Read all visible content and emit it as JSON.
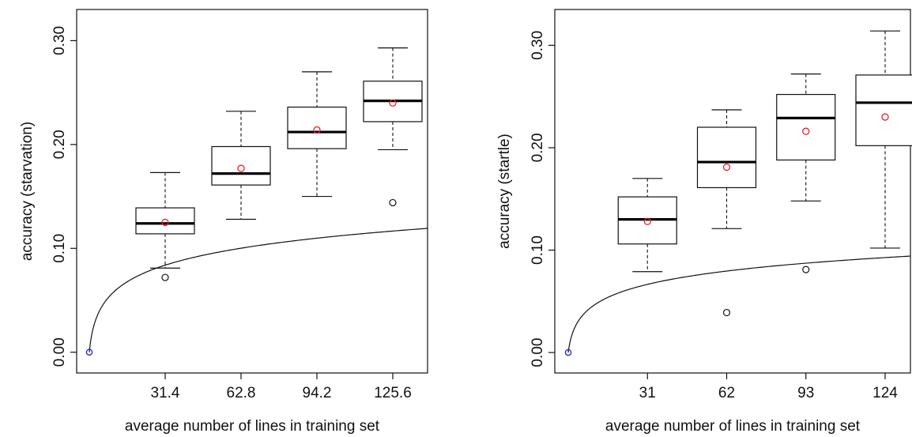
{
  "chart_data": [
    {
      "type": "boxplot",
      "xlabel": "average number of lines in training set",
      "ylabel": "accuracy (starvation)",
      "ylim": [
        -0.02,
        0.33
      ],
      "xlim": [
        -0.5,
        45
      ],
      "yticks": [
        "0.00",
        "0.10",
        "0.20",
        "0.30"
      ],
      "categories": [
        "31.4",
        "62.8",
        "94.2",
        "125.6"
      ],
      "boxes": [
        {
          "x": 31.4,
          "whisker_low": 0.081,
          "q1": 0.114,
          "median": 0.124,
          "q3": 0.139,
          "whisker_high": 0.173,
          "mean": 0.125,
          "outliers": [
            0.072
          ]
        },
        {
          "x": 62.8,
          "whisker_low": 0.128,
          "q1": 0.161,
          "median": 0.172,
          "q3": 0.198,
          "whisker_high": 0.232,
          "mean": 0.177,
          "outliers": []
        },
        {
          "x": 94.2,
          "whisker_low": 0.15,
          "q1": 0.196,
          "median": 0.212,
          "q3": 0.236,
          "whisker_high": 0.27,
          "mean": 0.214,
          "outliers": []
        },
        {
          "x": 125.6,
          "whisker_low": 0.195,
          "q1": 0.222,
          "median": 0.242,
          "q3": 0.261,
          "whisker_high": 0.293,
          "mean": 0.24,
          "outliers": [
            0.144
          ]
        }
      ],
      "origin_point": [
        0,
        0
      ],
      "fit_curve": {
        "a": 0.0241,
        "b": 1.0
      },
      "colors": {
        "mean": "#e8222c",
        "origin": "#1a22d4",
        "box": "#111111"
      }
    },
    {
      "type": "boxplot",
      "xlabel": "average number of lines in training set",
      "ylabel": "accuracy (startle)",
      "ylim": [
        -0.02,
        0.335
      ],
      "xlim": [
        -0.5,
        43
      ],
      "yticks": [
        "0.00",
        "0.10",
        "0.20",
        "0.30"
      ],
      "categories": [
        "31",
        "62",
        "93",
        "124"
      ],
      "boxes": [
        {
          "x": 31,
          "whisker_low": 0.079,
          "q1": 0.106,
          "median": 0.13,
          "q3": 0.152,
          "whisker_high": 0.17,
          "mean": 0.128,
          "outliers": []
        },
        {
          "x": 62,
          "whisker_low": 0.121,
          "q1": 0.161,
          "median": 0.186,
          "q3": 0.22,
          "whisker_high": 0.237,
          "mean": 0.181,
          "outliers": [
            0.039
          ]
        },
        {
          "x": 93,
          "whisker_low": 0.148,
          "q1": 0.188,
          "median": 0.229,
          "q3": 0.252,
          "whisker_high": 0.272,
          "mean": 0.216,
          "outliers": [
            0.081
          ]
        },
        {
          "x": 124,
          "whisker_low": 0.102,
          "q1": 0.202,
          "median": 0.244,
          "q3": 0.271,
          "whisker_high": 0.314,
          "mean": 0.23,
          "outliers": []
        }
      ],
      "origin_point": [
        0,
        0
      ],
      "fit_curve": {
        "a": 0.0192,
        "b": 1.0
      },
      "colors": {
        "mean": "#e8222c",
        "origin": "#1a22d4",
        "box": "#111111"
      }
    }
  ]
}
